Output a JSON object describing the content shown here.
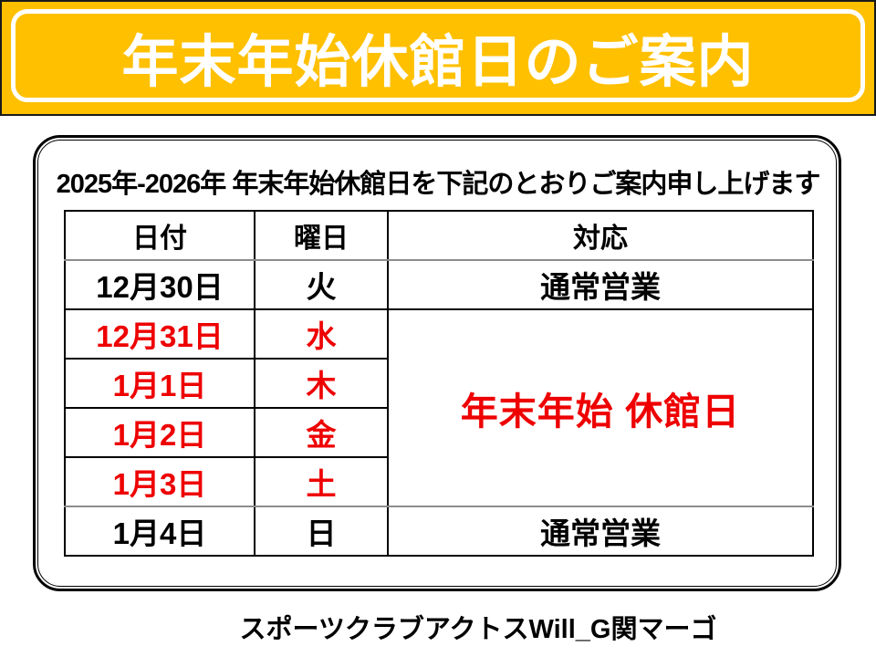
{
  "banner": {
    "title": "年末年始休館日のご案内",
    "bg_color": "#FFC000",
    "text_color": "#ffffff"
  },
  "notice": {
    "heading": "2025年-2026年 年末年始休館日を下記のとおりご案内申し上げます",
    "table": {
      "headers": [
        "日付",
        "曜日",
        "対応"
      ],
      "rows": [
        {
          "date": "12月30日",
          "day": "火",
          "status": "通常営業",
          "closed": false
        },
        {
          "date": "12月31日",
          "day": "水",
          "status": "年末年始 休館日",
          "closed": true,
          "status_rowspan": 4
        },
        {
          "date": "1月1日",
          "day": "木",
          "closed": true
        },
        {
          "date": "1月2日",
          "day": "金",
          "closed": true
        },
        {
          "date": "1月3日",
          "day": "土",
          "closed": true
        },
        {
          "date": "1月4日",
          "day": "日",
          "status": "通常営業",
          "closed": false
        }
      ]
    }
  },
  "footer": {
    "club_name": "スポーツクラブアクトスWill_G関マーゴ"
  },
  "colors": {
    "banner_yellow": "#FFC000",
    "closed_red": "#ee0000",
    "divider_gray": "#8c8c8c",
    "border_black": "#000000"
  }
}
